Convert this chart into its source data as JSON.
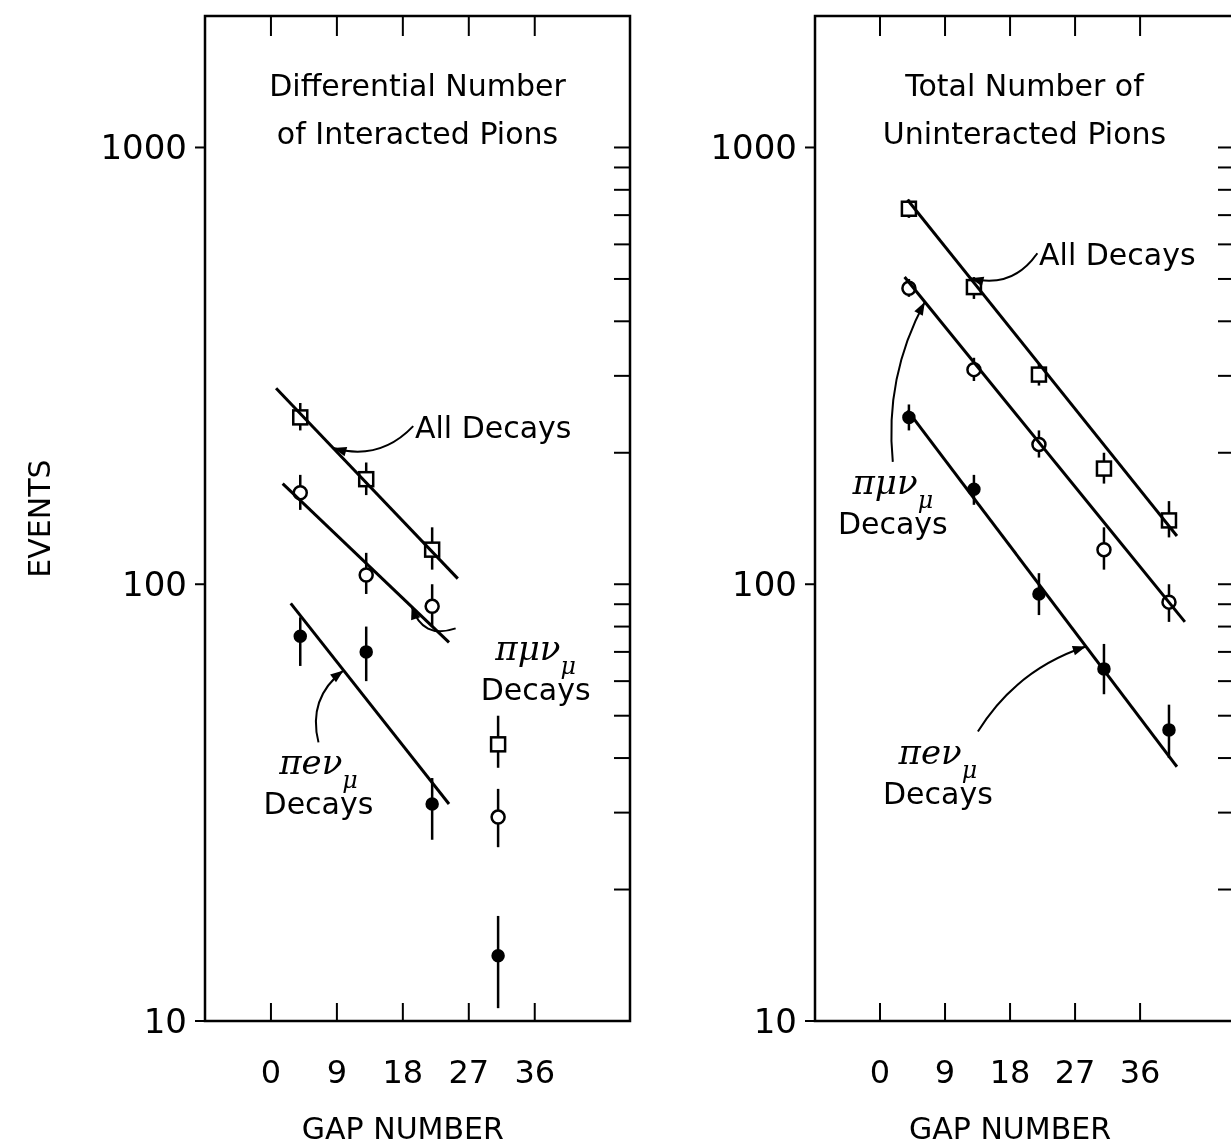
{
  "chart_data": [
    {
      "type": "scatter",
      "title": "Differential Number of Interacted Pions",
      "xlabel": "GAP NUMBER",
      "ylabel": "EVENTS",
      "log": "y",
      "xlim": [
        -9,
        49
      ],
      "xticks": [
        0,
        9,
        18,
        27,
        36
      ],
      "ylim": [
        10,
        2000
      ],
      "yticks": [
        10,
        {
          "value": 20,
          "label": null
        },
        {
          "value": 30,
          "label": null
        },
        {
          "value": 40,
          "label": null
        },
        {
          "value": 50,
          "label": null
        },
        {
          "value": 60,
          "label": null
        },
        {
          "value": 70,
          "label": null
        },
        {
          "value": 80,
          "label": null
        },
        {
          "value": 90,
          "label": null
        },
        100,
        {
          "value": 200,
          "label": null
        },
        {
          "value": 300,
          "label": null
        },
        {
          "value": 400,
          "label": null
        },
        {
          "value": 500,
          "label": null
        },
        {
          "value": 600,
          "label": null
        },
        {
          "value": 700,
          "label": null
        },
        {
          "value": 800,
          "label": null
        },
        {
          "value": 900,
          "label": null
        },
        1000
      ],
      "grid": false,
      "series": [
        {
          "type": "scatter",
          "marker": "square",
          "color": "#000000",
          "x": [
            4,
            13,
            22,
            31
          ],
          "values": [
            241,
            174,
            120,
            43
          ],
          "errors": [
            [
              225,
              260
            ],
            [
              160,
              190
            ],
            [
              108,
              135
            ],
            [
              38,
              50
            ]
          ]
        },
        {
          "type": "scatter",
          "marker": "circle",
          "color": "#000000",
          "x": [
            4,
            13,
            22,
            31
          ],
          "values": [
            162,
            105,
            89,
            29.3
          ],
          "errors": [
            [
              148,
              178
            ],
            [
              95,
              118
            ],
            [
              80,
              100
            ],
            [
              25,
              34
            ]
          ]
        },
        {
          "type": "scatter",
          "marker": "circle",
          "color": "#000000",
          "x": [
            4,
            13,
            22,
            31
          ],
          "values": [
            76,
            70,
            31.4,
            14.1
          ],
          "errors": [
            [
              65,
              84
            ],
            [
              60,
              80
            ],
            [
              26,
              36
            ],
            [
              10.7,
              17.4
            ]
          ]
        },
        {
          "type": "line",
          "marker": "none",
          "color": "#000000",
          "x": [
            0.7,
            25.5
          ],
          "values": [
            281,
            103
          ]
        },
        {
          "type": "line",
          "marker": "none",
          "color": "#000000",
          "x": [
            1.6,
            24.3
          ],
          "values": [
            170,
            73.6
          ]
        },
        {
          "type": "line",
          "marker": "none",
          "color": "#000000",
          "x": [
            2.7,
            24.3
          ],
          "values": [
            90.4,
            31.4
          ]
        }
      ],
      "annotations": [
        {
          "text": "All Decays",
          "x": 8.5,
          "y": 205
        },
        {
          "text": "πμν$_{μ}$ Decays",
          "x": 19.2,
          "y": 89
        },
        {
          "text": "πeν$_{μ}$ Decays",
          "x": 9.9,
          "y": 63.5
        }
      ]
    },
    {
      "type": "scatter",
      "title": "Total Number of Uninteracted Pions",
      "xlabel": "GAP NUMBER",
      "log": "y",
      "xlim": [
        -9,
        49
      ],
      "xticks": [
        0,
        9,
        18,
        27,
        36
      ],
      "ylim": [
        10,
        2000
      ],
      "yticks": [
        10,
        {
          "value": 20,
          "label": null
        },
        {
          "value": 30,
          "label": null
        },
        {
          "value": 40,
          "label": null
        },
        {
          "value": 50,
          "label": null
        },
        {
          "value": 60,
          "label": null
        },
        {
          "value": 70,
          "label": null
        },
        {
          "value": 80,
          "label": null
        },
        {
          "value": 90,
          "label": null
        },
        100,
        {
          "value": 200,
          "label": null
        },
        {
          "value": 300,
          "label": null
        },
        {
          "value": 400,
          "label": null
        },
        {
          "value": 500,
          "label": null
        },
        {
          "value": 600,
          "label": null
        },
        {
          "value": 700,
          "label": null
        },
        {
          "value": 800,
          "label": null
        },
        {
          "value": 900,
          "label": null
        },
        1000
      ],
      "grid": false,
      "series": [
        {
          "type": "scatter",
          "marker": "square",
          "color": "#000000",
          "x": [
            4,
            13,
            22,
            31,
            40
          ],
          "values": [
            724,
            479,
            302,
            184,
            140
          ],
          "errors": [
            [
              690,
              760
            ],
            [
              450,
              505
            ],
            [
              285,
              320
            ],
            [
              170,
              200
            ],
            [
              128,
              155
            ]
          ]
        },
        {
          "type": "scatter",
          "marker": "circle",
          "color": "#000000",
          "x": [
            4,
            13,
            22,
            31,
            40
          ],
          "values": [
            476,
            310,
            209,
            120,
            91
          ],
          "errors": [
            [
              455,
              500
            ],
            [
              292,
              330
            ],
            [
              195,
              225
            ],
            [
              108,
              135
            ],
            [
              82,
              100
            ]
          ]
        },
        {
          "type": "scatter",
          "marker": "circle",
          "color": "#000000",
          "x": [
            4,
            13,
            22,
            31,
            40
          ],
          "values": [
            241,
            165,
            95,
            64,
            46.4
          ],
          "errors": [
            [
              225,
              258
            ],
            [
              152,
              178
            ],
            [
              85,
              106
            ],
            [
              56,
              73
            ],
            [
              40,
              53
            ]
          ]
        },
        {
          "type": "line",
          "marker": "none",
          "color": "#000000",
          "x": [
            3.8,
            41.1
          ],
          "values": [
            759,
            129
          ]
        },
        {
          "type": "line",
          "marker": "none",
          "color": "#000000",
          "x": [
            3.4,
            42.2
          ],
          "values": [
            505,
            82
          ]
        },
        {
          "type": "line",
          "marker": "none",
          "color": "#000000",
          "x": [
            3.8,
            41.1
          ],
          "values": [
            250,
            38.2
          ]
        }
      ],
      "annotations": [
        {
          "text": "All Decays",
          "x": 12.5,
          "y": 502
        },
        {
          "text": "πμν$_{μ}$ Decays",
          "x": 6.2,
          "y": 443
        },
        {
          "text": "πeν$_{μ}$ Decays",
          "x": 28.5,
          "y": 72
        }
      ]
    }
  ]
}
